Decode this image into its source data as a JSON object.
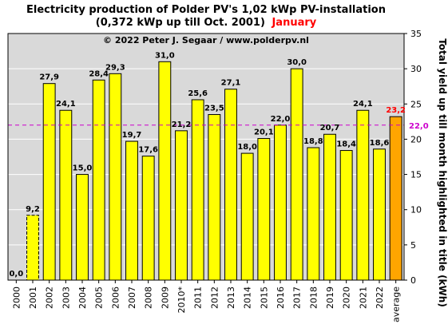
{
  "chart_data": {
    "type": "bar",
    "title_line1": "Electricity production  of Polder  PV's  1,02 kWp PV-installation",
    "title_line2": "(0,372 kWp up till Oct. 2001)",
    "title_month": "January",
    "copyright": "© 2022 Peter J. Segaar / www.polderpv.nl",
    "ylabel": "Total yield up till month highlighted in title (kWh)",
    "ylim": [
      0,
      35
    ],
    "yticks": [
      0,
      5,
      10,
      15,
      20,
      25,
      30,
      35
    ],
    "categories": [
      "2000",
      "2001",
      "2002",
      "2003",
      "2004",
      "2005",
      "2006",
      "2007",
      "2008",
      "2009",
      "2010*",
      "2011",
      "2012",
      "2013",
      "2014",
      "2015",
      "2016",
      "2017",
      "2018",
      "2019",
      "2020",
      "2021",
      "2022",
      "average"
    ],
    "values": [
      0,
      9.2,
      27.9,
      24.1,
      15.0,
      28.4,
      29.3,
      19.7,
      17.6,
      31.0,
      21.2,
      25.6,
      23.5,
      27.1,
      18.0,
      20.1,
      22.0,
      30.0,
      18.8,
      20.7,
      18.4,
      24.1,
      18.6,
      23.2
    ],
    "value_labels": [
      "0,0",
      "9,2",
      "27,9",
      "24,1",
      "15,0",
      "28,4",
      "29,3",
      "19,7",
      "17,6",
      "31,0",
      "21,2",
      "25,6",
      "23,5",
      "27,1",
      "18,0",
      "20,1",
      "22,0",
      "30,0",
      "18,8",
      "20,7",
      "18,4",
      "24,1",
      "18,6",
      "23,2"
    ],
    "reference_line": {
      "value": 22.0,
      "label": "22,0",
      "style": "dashed"
    },
    "grid": true,
    "colors": {
      "bar": "#ffff00",
      "bar_partial_year": "#ffff00",
      "bar_average": "#ffa500",
      "average_label": "#ff0000",
      "reference_line": "#cc00cc",
      "plot_background": "#d9d9d9",
      "title_month": "#ff0000"
    }
  }
}
